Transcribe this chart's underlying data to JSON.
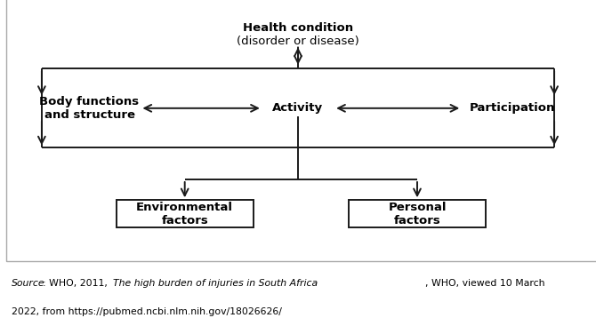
{
  "title_line1": "Health condition",
  "title_line2": "(disorder or disease)",
  "node_activity": "Activity",
  "node_body": "Body functions\nand structure",
  "node_participation": "Participation",
  "node_env": "Environmental\nfactors",
  "node_personal": "Personal\nfactors",
  "caption_source": "Source",
  "caption_normal1": ": WHO, 2011, ",
  "caption_italic": "The high burden of injuries in South Africa",
  "caption_normal2": ", WHO, viewed 10 March\n2022, from https://pubmed.ncbi.nlm.nih.gov/18026626/",
  "bg_color": "#ffffff",
  "text_color": "#000000",
  "box_color": "#1a1a1a",
  "arrow_color": "#1a1a1a",
  "border_color": "#aaaaaa"
}
